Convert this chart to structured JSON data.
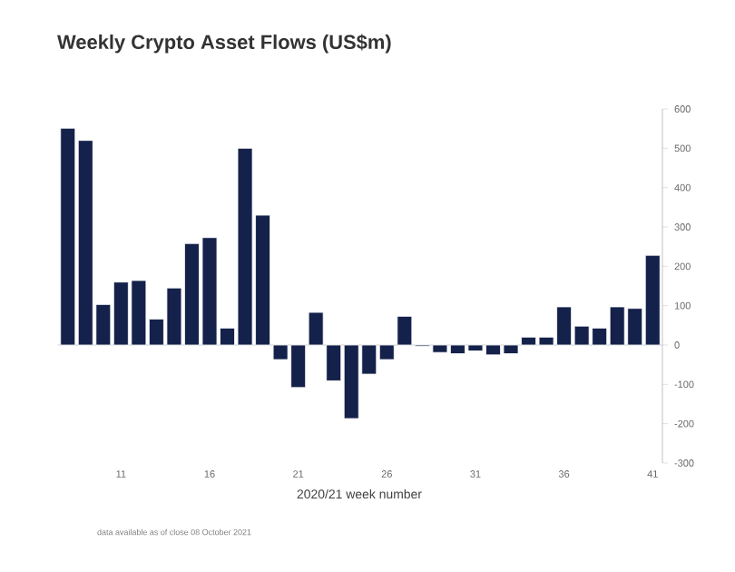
{
  "chart_data": {
    "type": "bar",
    "title": "Weekly Crypto Asset Flows (US$m)",
    "xlabel": "2020/21 week number",
    "categories": [
      null,
      null,
      null,
      "11",
      null,
      null,
      null,
      null,
      "16",
      null,
      null,
      null,
      null,
      "21",
      null,
      null,
      null,
      null,
      "26",
      null,
      null,
      null,
      null,
      "31",
      null,
      null,
      null,
      null,
      "36",
      null,
      null,
      null,
      null,
      "41"
    ],
    "values": [
      551,
      520,
      103,
      160,
      164,
      66,
      145,
      258,
      273,
      43,
      500,
      330,
      -37,
      -108,
      83,
      -91,
      -187,
      -74,
      -37,
      73,
      -3,
      -19,
      -22,
      -15,
      -25,
      -22,
      20,
      20,
      97,
      48,
      43,
      97,
      93,
      228
    ],
    "color": "#14214a",
    "ylim": [
      -300,
      600
    ],
    "yticks": [
      -300,
      -200,
      -100,
      0,
      100,
      200,
      300,
      400,
      500,
      600
    ],
    "grid": false,
    "ref_lines": [
      {
        "axis": "y",
        "value": 0,
        "color": "#d0d0d4"
      }
    ],
    "annotations": [
      "data available as of close 08 October 2021"
    ]
  }
}
